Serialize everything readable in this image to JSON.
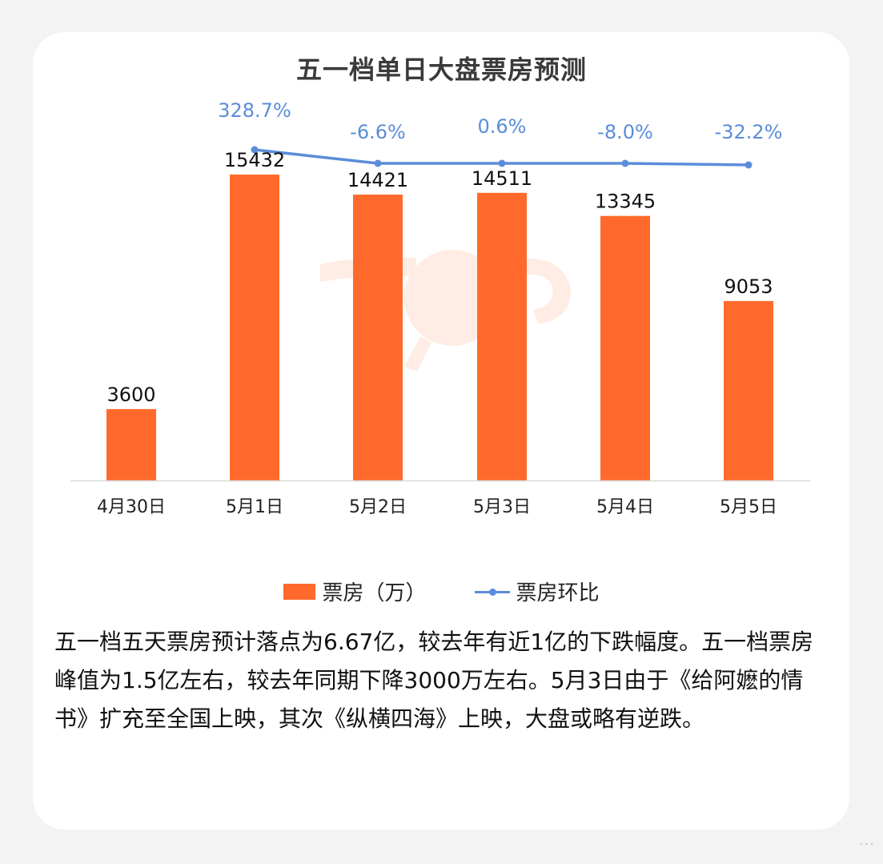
{
  "title": "五一档单日大盘票房预测",
  "chart_data": {
    "type": "bar",
    "categories": [
      "4月30日",
      "5月1日",
      "5月2日",
      "5月3日",
      "5月4日",
      "5月5日"
    ],
    "series": [
      {
        "name": "票房（万）",
        "type": "bar",
        "color": "#FF6A2C",
        "values": [
          3600,
          15432,
          14421,
          14511,
          13345,
          9053
        ]
      },
      {
        "name": "票房环比",
        "type": "line",
        "color": "#5B8DD9",
        "values": [
          null,
          "328.7%",
          "-6.6%",
          "0.6%",
          "-8.0%",
          "-32.2%"
        ]
      }
    ],
    "ylim": [
      0,
      16000
    ],
    "grid": false,
    "legend": "bottom"
  },
  "description": "五一档五天票房预计落点为6.67亿，较去年有近1亿的下跌幅度。五一档票房峰值为1.5亿左右，较去年同期下降3000万左右。5月3日由于《给阿嬷的情书》扩充至全国上映，其次《纵横四海》上映，大盘或略有逆跌。"
}
